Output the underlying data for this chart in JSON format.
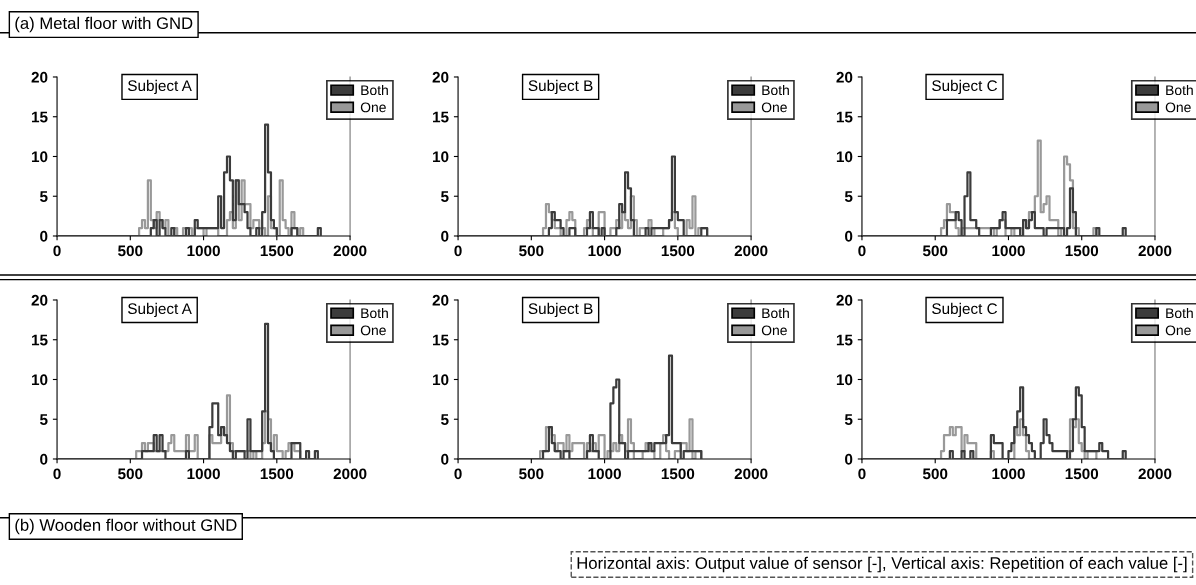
{
  "chart_data": [
    {
      "type": "step",
      "title": "Subject A",
      "xlim": [
        0,
        2000
      ],
      "ylim": [
        0,
        20
      ],
      "xticks": [
        0,
        500,
        1000,
        1500,
        2000
      ],
      "yticks": [
        0,
        5,
        10,
        15,
        20
      ],
      "legend": "top right",
      "annotations": [
        "(a) Metal floor with GND"
      ],
      "series": [
        {
          "name": "Both",
          "color": "#3c3c3c",
          "x": [
            0,
            640,
            660,
            680,
            700,
            720,
            740,
            780,
            800,
            880,
            900,
            940,
            960,
            980,
            1000,
            1100,
            1120,
            1140,
            1160,
            1180,
            1200,
            1220,
            1240,
            1260,
            1280,
            1300,
            1320,
            1360,
            1380,
            1400,
            1420,
            1440,
            1460,
            1480,
            1500,
            1600,
            1620,
            1640,
            1660,
            1780,
            1800
          ],
          "values": [
            0,
            1,
            2,
            0,
            2,
            1,
            0,
            1,
            0,
            1,
            0,
            2,
            1,
            1,
            1,
            5,
            1,
            8,
            10,
            7,
            2,
            7,
            4,
            4,
            3,
            1,
            0,
            1,
            0,
            3,
            14,
            8,
            2,
            1,
            0,
            1,
            1,
            0,
            0,
            1,
            0
          ]
        },
        {
          "name": "One",
          "color": "#999999",
          "x": [
            0,
            560,
            580,
            600,
            620,
            640,
            660,
            680,
            700,
            720,
            740,
            760,
            800,
            820,
            860,
            880,
            900,
            920,
            940,
            1000,
            1020,
            1100,
            1160,
            1180,
            1200,
            1220,
            1240,
            1260,
            1280,
            1300,
            1320,
            1340,
            1360,
            1380,
            1400,
            1420,
            1440,
            1460,
            1480,
            1500,
            1520,
            1540,
            1560,
            1580,
            1600,
            1620,
            1640,
            1660,
            1680
          ],
          "values": [
            0,
            1,
            2,
            1,
            7,
            2,
            1,
            3,
            2,
            1,
            2,
            0,
            1,
            0,
            1,
            0,
            1,
            0,
            1,
            0,
            1,
            0,
            2,
            3,
            1,
            7,
            2,
            7,
            4,
            4,
            1,
            2,
            2,
            1,
            1,
            0,
            5,
            1,
            1,
            0,
            7,
            2,
            1,
            0,
            3,
            1,
            0,
            1,
            0
          ]
        }
      ]
    },
    {
      "type": "step",
      "title": "Subject B",
      "xlim": [
        0,
        2000
      ],
      "ylim": [
        0,
        20
      ],
      "xticks": [
        0,
        500,
        1000,
        1500,
        2000
      ],
      "yticks": [
        0,
        5,
        10,
        15,
        20
      ],
      "legend": "top right",
      "series": [
        {
          "name": "Both",
          "color": "#3c3c3c",
          "x": [
            0,
            620,
            640,
            660,
            680,
            700,
            720,
            760,
            800,
            880,
            900,
            920,
            960,
            980,
            1000,
            1080,
            1100,
            1120,
            1140,
            1160,
            1180,
            1200,
            1280,
            1300,
            1320,
            1440,
            1460,
            1480,
            1500,
            1540,
            1660,
            1680,
            1700
          ],
          "values": [
            0,
            1,
            3,
            2,
            2,
            1,
            0,
            1,
            0,
            1,
            3,
            1,
            0,
            1,
            0,
            1,
            4,
            3,
            8,
            6,
            2,
            0,
            1,
            0,
            1,
            2,
            10,
            3,
            2,
            0,
            1,
            1,
            0
          ]
        },
        {
          "name": "One",
          "color": "#999999",
          "x": [
            0,
            580,
            600,
            620,
            640,
            660,
            680,
            700,
            740,
            760,
            780,
            800,
            860,
            880,
            900,
            920,
            960,
            980,
            1000,
            1040,
            1080,
            1100,
            1120,
            1140,
            1160,
            1180,
            1200,
            1220,
            1240,
            1300,
            1320,
            1340,
            1400,
            1440,
            1460,
            1480,
            1500,
            1560,
            1580,
            1600,
            1620,
            1640,
            1660,
            1680,
            1700
          ],
          "values": [
            0,
            1,
            4,
            3,
            2,
            1,
            1,
            0,
            2,
            3,
            2,
            0,
            1,
            2,
            1,
            0,
            3,
            3,
            0,
            1,
            2,
            1,
            3,
            2,
            1,
            5,
            2,
            0,
            1,
            2,
            1,
            0,
            1,
            2,
            3,
            1,
            0,
            2,
            1,
            5,
            0,
            1,
            1,
            1,
            0
          ]
        }
      ]
    },
    {
      "type": "step",
      "title": "Subject C",
      "xlim": [
        0,
        2000
      ],
      "ylim": [
        0,
        20
      ],
      "xticks": [
        0,
        500,
        1000,
        1500,
        2000
      ],
      "yticks": [
        0,
        5,
        10,
        15,
        20
      ],
      "legend": "top right",
      "series": [
        {
          "name": "Both",
          "color": "#3c3c3c",
          "x": [
            0,
            580,
            600,
            620,
            640,
            660,
            680,
            700,
            720,
            740,
            760,
            780,
            800,
            880,
            900,
            940,
            960,
            980,
            1080,
            1100,
            1120,
            1140,
            1160,
            1180,
            1240,
            1260,
            1380,
            1400,
            1420,
            1440,
            1460,
            1600,
            1620,
            1780,
            1800
          ],
          "values": [
            0,
            2,
            2,
            2,
            3,
            2,
            0,
            5,
            8,
            2,
            2,
            1,
            0,
            1,
            1,
            2,
            3,
            1,
            0,
            2,
            1,
            2,
            3,
            1,
            0,
            1,
            0,
            1,
            6,
            3,
            0,
            1,
            0,
            1,
            0
          ]
        },
        {
          "name": "One",
          "color": "#999999",
          "x": [
            0,
            540,
            560,
            580,
            600,
            640,
            660,
            680,
            900,
            920,
            940,
            980,
            1020,
            1040,
            1080,
            1100,
            1120,
            1140,
            1180,
            1200,
            1220,
            1240,
            1260,
            1280,
            1300,
            1340,
            1360,
            1380,
            1400,
            1420,
            1440,
            1460,
            1480,
            1580,
            1600
          ],
          "values": [
            0,
            1,
            2,
            4,
            3,
            1,
            0,
            1,
            0,
            1,
            2,
            0,
            1,
            0,
            1,
            2,
            1,
            3,
            5,
            12,
            3,
            4,
            5,
            2,
            2,
            0,
            1,
            10,
            9,
            7,
            1,
            1,
            0,
            1,
            0
          ]
        }
      ]
    },
    {
      "type": "step",
      "title": "Subject A",
      "xlim": [
        0,
        2000
      ],
      "ylim": [
        0,
        20
      ],
      "xticks": [
        0,
        500,
        1000,
        1500,
        2000
      ],
      "yticks": [
        0,
        5,
        10,
        15,
        20
      ],
      "legend": "top right",
      "annotations": [
        "(b) Wooden floor without GND"
      ],
      "series": [
        {
          "name": "Both",
          "color": "#3c3c3c",
          "x": [
            0,
            580,
            600,
            640,
            660,
            680,
            700,
            720,
            740,
            880,
            900,
            1040,
            1060,
            1100,
            1120,
            1140,
            1160,
            1180,
            1200,
            1220,
            1280,
            1300,
            1320,
            1380,
            1400,
            1420,
            1440,
            1460,
            1480,
            1600,
            1620,
            1660,
            1700,
            1720,
            1760,
            1780
          ],
          "values": [
            0,
            1,
            1,
            1,
            3,
            1,
            3,
            1,
            0,
            1,
            0,
            4,
            7,
            3,
            4,
            3,
            2,
            1,
            0,
            1,
            0,
            5,
            1,
            1,
            6,
            17,
            2,
            1,
            0,
            2,
            2,
            0,
            1,
            0,
            1,
            0
          ]
        },
        {
          "name": "One",
          "color": "#999999",
          "x": [
            0,
            540,
            560,
            580,
            600,
            620,
            660,
            680,
            700,
            760,
            780,
            800,
            880,
            900,
            920,
            940,
            960,
            1040,
            1060,
            1100,
            1120,
            1140,
            1160,
            1180,
            1200,
            1240,
            1260,
            1300,
            1320,
            1340,
            1360,
            1400,
            1420,
            1440,
            1460,
            1480,
            1500,
            1520,
            1540,
            1560,
            1580,
            1600,
            1620,
            1660
          ],
          "values": [
            0,
            1,
            1,
            2,
            1,
            2,
            1,
            1,
            1,
            2,
            3,
            1,
            3,
            1,
            1,
            3,
            0,
            3,
            2,
            2,
            4,
            3,
            8,
            2,
            1,
            1,
            1,
            1,
            0,
            1,
            0,
            2,
            6,
            5,
            1,
            3,
            1,
            1,
            0,
            1,
            2,
            2,
            1,
            0
          ]
        }
      ]
    },
    {
      "type": "step",
      "title": "Subject B",
      "xlim": [
        0,
        2000
      ],
      "ylim": [
        0,
        20
      ],
      "xticks": [
        0,
        500,
        1000,
        1500,
        2000
      ],
      "yticks": [
        0,
        5,
        10,
        15,
        20
      ],
      "legend": "top right",
      "series": [
        {
          "name": "Both",
          "color": "#3c3c3c",
          "x": [
            0,
            580,
            600,
            620,
            640,
            660,
            700,
            720,
            760,
            880,
            900,
            920,
            960,
            1040,
            1060,
            1080,
            1100,
            1120,
            1140,
            1160,
            1280,
            1300,
            1320,
            1340,
            1360,
            1400,
            1420,
            1440,
            1460,
            1480,
            1520,
            1540,
            1600,
            1620,
            1640,
            1660
          ],
          "values": [
            0,
            1,
            1,
            4,
            2,
            1,
            0,
            1,
            0,
            1,
            3,
            1,
            0,
            7,
            9,
            10,
            2,
            2,
            0,
            1,
            1,
            2,
            1,
            2,
            2,
            2,
            3,
            13,
            2,
            2,
            0,
            1,
            1,
            1,
            1,
            0
          ]
        },
        {
          "name": "One",
          "color": "#999999",
          "x": [
            0,
            560,
            580,
            600,
            620,
            640,
            660,
            680,
            720,
            740,
            760,
            780,
            860,
            880,
            900,
            920,
            940,
            960,
            1000,
            1020,
            1060,
            1080,
            1100,
            1120,
            1140,
            1160,
            1180,
            1200,
            1260,
            1280,
            1300,
            1340,
            1380,
            1400,
            1420,
            1440,
            1480,
            1520,
            1560,
            1580,
            1600,
            1620,
            1640,
            1660
          ],
          "values": [
            0,
            1,
            1,
            4,
            4,
            3,
            1,
            2,
            1,
            3,
            1,
            2,
            0,
            2,
            1,
            2,
            1,
            3,
            0,
            1,
            2,
            1,
            3,
            2,
            1,
            5,
            2,
            0,
            1,
            2,
            1,
            0,
            2,
            3,
            1,
            0,
            1,
            2,
            1,
            5,
            0,
            1,
            1,
            0
          ]
        }
      ]
    },
    {
      "type": "step",
      "title": "Subject C",
      "xlim": [
        0,
        2000
      ],
      "ylim": [
        0,
        20
      ],
      "xticks": [
        0,
        500,
        1000,
        1500,
        2000
      ],
      "yticks": [
        0,
        5,
        10,
        15,
        20
      ],
      "legend": "top right",
      "annotations": [
        "Horizontal axis: Output value of sensor [-], Vertical axis: Repetition of each value [-]"
      ],
      "series": [
        {
          "name": "Both",
          "color": "#3c3c3c",
          "x": [
            0,
            600,
            620,
            680,
            700,
            740,
            760,
            880,
            900,
            920,
            960,
            1000,
            1020,
            1040,
            1060,
            1080,
            1100,
            1120,
            1140,
            1160,
            1180,
            1220,
            1240,
            1260,
            1280,
            1300,
            1400,
            1420,
            1440,
            1460,
            1480,
            1500,
            1520,
            1560,
            1600,
            1620,
            1640,
            1660,
            1680,
            1780,
            1800
          ],
          "values": [
            0,
            1,
            0,
            1,
            0,
            1,
            0,
            3,
            2,
            2,
            0,
            1,
            2,
            4,
            6,
            9,
            4,
            3,
            2,
            1,
            0,
            2,
            5,
            3,
            2,
            1,
            0,
            1,
            5,
            9,
            8,
            4,
            1,
            1,
            1,
            2,
            1,
            1,
            0,
            1,
            0
          ]
        },
        {
          "name": "One",
          "color": "#999999",
          "x": [
            0,
            540,
            560,
            580,
            600,
            620,
            640,
            680,
            700,
            720,
            740,
            780,
            880,
            900,
            1040,
            1060,
            1080,
            1100,
            1120,
            1140,
            1400,
            1420,
            1440,
            1460,
            1480,
            1500,
            1520,
            1540,
            1580,
            1600
          ],
          "values": [
            0,
            1,
            3,
            3,
            4,
            3,
            4,
            1,
            3,
            2,
            2,
            0,
            1,
            0,
            4,
            3,
            5,
            3,
            1,
            0,
            1,
            5,
            4,
            5,
            2,
            1,
            0,
            1,
            1,
            0
          ]
        }
      ]
    }
  ]
}
